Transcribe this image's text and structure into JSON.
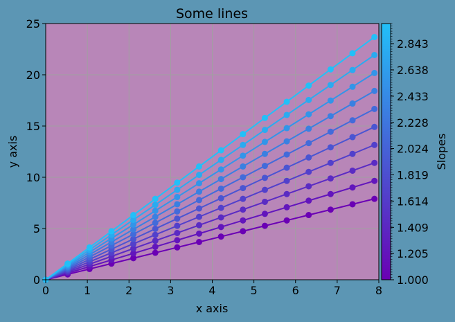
{
  "chart_data": {
    "type": "line",
    "title": "Some lines",
    "xlabel": "x axis",
    "ylabel": "y axis",
    "xlim": [
      0,
      8
    ],
    "ylim": [
      0,
      25
    ],
    "x_ticks": [
      "0",
      "1",
      "2",
      "3",
      "4",
      "5",
      "6",
      "7",
      "8"
    ],
    "y_ticks": [
      "0",
      "5",
      "10",
      "15",
      "20",
      "25"
    ],
    "grid": true,
    "x": [
      0,
      0.5263,
      1.0526,
      1.5789,
      2.1053,
      2.6316,
      3.1579,
      3.6842,
      4.2105,
      4.7368,
      5.2632,
      5.7895,
      6.3158,
      6.8421,
      7.3684,
      7.8947
    ],
    "series": [
      {
        "slope": 1.0
      },
      {
        "slope": 1.2222
      },
      {
        "slope": 1.4444
      },
      {
        "slope": 1.6667
      },
      {
        "slope": 1.8889
      },
      {
        "slope": 2.1111
      },
      {
        "slope": 2.3333
      },
      {
        "slope": 2.5556
      },
      {
        "slope": 2.7778
      },
      {
        "slope": 3.0
      }
    ],
    "colorbar": {
      "label": "Slopes",
      "range": [
        1.0,
        3.0
      ],
      "tick_labels": [
        "1.000",
        "1.205",
        "1.409",
        "1.614",
        "1.819",
        "2.024",
        "2.228",
        "2.433",
        "2.638",
        "2.843"
      ],
      "tick_values": [
        1.0,
        1.205,
        1.409,
        1.614,
        1.819,
        2.024,
        2.228,
        2.433,
        2.638,
        2.843
      ],
      "color_low": "#6a00b4",
      "color_high": "#22c0f8"
    },
    "colors": {
      "figure_bg": "#5c96b4",
      "axes_bg": "#b886b8",
      "grid": "#a0a0a0"
    }
  }
}
